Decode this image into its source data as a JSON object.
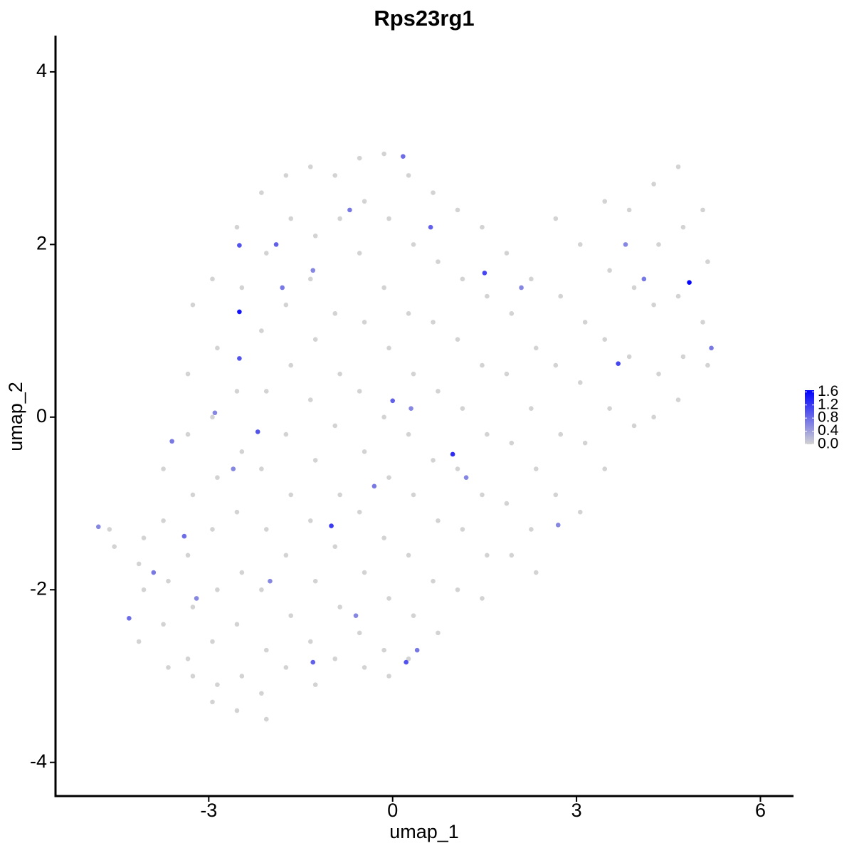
{
  "chart_data": {
    "type": "scatter",
    "title": "Rps23rg1",
    "x_label": "umap_1",
    "y_label": "umap_2",
    "xlim": [
      -5.5,
      6.54
    ],
    "ylim": [
      -4.39,
      4.42
    ],
    "xticks": [
      -3,
      0,
      3,
      6
    ],
    "yticks": [
      -4,
      -2,
      0,
      2,
      4
    ],
    "low_color": "#d3d3d3",
    "high_color": "#0000ff",
    "colorlim": [
      0,
      1.65
    ],
    "color_ticks": [
      {
        "value": 0,
        "label": "0.0"
      },
      {
        "value": 0.4,
        "label": "0.4"
      },
      {
        "value": 0.8,
        "label": "0.8"
      },
      {
        "value": 1.2,
        "label": "1.2"
      },
      {
        "value": 1.6,
        "label": "1.6"
      }
    ],
    "x": [
      -4.62,
      -4.54,
      -4.14,
      -4.06,
      -4.14,
      -4.06,
      -3.74,
      -3.66,
      -3.74,
      -3.66,
      -3.74,
      -3.34,
      -3.26,
      -3.34,
      -3.26,
      -3.34,
      -3.26,
      -3.34,
      -3.26,
      -2.94,
      -2.86,
      -2.94,
      -2.86,
      -2.94,
      -2.86,
      -2.94,
      -2.86,
      -2.94,
      -2.54,
      -2.46,
      -2.54,
      -2.46,
      -2.54,
      -2.46,
      -2.54,
      -2.46,
      -2.54,
      -2.14,
      -2.06,
      -2.14,
      -2.06,
      -2.14,
      -2.06,
      -2.14,
      -2.06,
      -2.14,
      -2.06,
      -1.74,
      -1.66,
      -1.74,
      -1.66,
      -1.74,
      -1.66,
      -1.74,
      -1.66,
      -1.74,
      -1.34,
      -1.26,
      -1.34,
      -1.26,
      -1.34,
      -1.26,
      -1.34,
      -1.26,
      -1.34,
      -1.26,
      -0.94,
      -0.86,
      -0.94,
      -0.86,
      -0.94,
      -0.86,
      -0.94,
      -0.86,
      -0.94,
      -0.54,
      -0.46,
      -0.54,
      -0.46,
      -0.54,
      -0.46,
      -0.54,
      -0.46,
      -0.54,
      -0.46,
      -0.14,
      -0.06,
      -0.14,
      -0.06,
      -0.14,
      -0.06,
      -0.14,
      -0.06,
      -0.14,
      -0.06,
      0.26,
      0.34,
      0.26,
      0.34,
      0.26,
      0.34,
      0.26,
      0.34,
      0.26,
      0.66,
      0.74,
      0.66,
      0.74,
      0.66,
      0.74,
      0.66,
      0.74,
      1.06,
      1.14,
      1.06,
      1.14,
      1.06,
      1.14,
      1.06,
      1.46,
      1.54,
      1.46,
      1.54,
      1.46,
      1.54,
      1.46,
      1.86,
      1.94,
      1.86,
      1.94,
      1.86,
      1.94,
      2.26,
      2.34,
      2.26,
      2.34,
      2.26,
      2.34,
      2.66,
      2.74,
      2.66,
      2.74,
      2.66,
      3.06,
      3.14,
      3.06,
      3.14,
      3.06,
      3.46,
      3.54,
      3.46,
      3.54,
      3.46,
      3.86,
      3.94,
      3.86,
      3.94,
      4.26,
      4.34,
      4.26,
      4.34,
      4.26,
      4.66,
      4.74,
      4.66,
      4.74,
      4.66,
      5.06,
      5.14,
      5.06,
      5.14,
      -2.5,
      -2.5,
      -1.9,
      4.84,
      0.98,
      -1.0,
      1.5,
      3.68,
      -2.5,
      -2.2,
      0.0,
      0.17,
      0.62,
      -4.8,
      -3.6,
      -3.4,
      -4.3,
      -1.3,
      0.22,
      -2.9,
      -1.8,
      -1.3,
      -0.7,
      -2.6,
      -0.3,
      0.3,
      1.2,
      2.1,
      3.8,
      5.2,
      4.1,
      -3.2,
      -2.0,
      -0.6,
      0.4,
      2.7,
      -3.9
    ],
    "values": [
      -1.3,
      -1.5,
      -1.7,
      -2.0,
      -2.6,
      -1.4,
      -1.2,
      -1.9,
      -2.4,
      -2.9,
      -0.6,
      -0.2,
      -0.9,
      -1.6,
      -2.2,
      -2.8,
      -3.0,
      0.5,
      1.3,
      0.0,
      0.8,
      1.6,
      -0.7,
      -1.3,
      -2.0,
      -2.6,
      -3.1,
      -3.3,
      2.2,
      1.5,
      0.3,
      -0.4,
      -1.1,
      -1.8,
      -2.4,
      -3.0,
      -3.4,
      2.6,
      1.9,
      1.0,
      0.3,
      -0.6,
      -1.3,
      -2.0,
      -2.7,
      -3.2,
      -3.5,
      2.8,
      2.3,
      1.3,
      0.6,
      -0.2,
      -0.9,
      -1.6,
      -2.3,
      -2.9,
      2.9,
      2.1,
      1.6,
      0.9,
      0.2,
      -0.5,
      -1.2,
      -1.9,
      -2.6,
      -3.1,
      2.8,
      2.3,
      1.2,
      0.5,
      -0.1,
      -0.9,
      -1.5,
      -2.2,
      -2.8,
      3.0,
      2.5,
      1.9,
      1.1,
      0.3,
      -0.4,
      -1.1,
      -1.8,
      -2.5,
      -2.9,
      3.05,
      2.3,
      1.5,
      0.8,
      0.0,
      -0.7,
      -1.4,
      -2.1,
      -2.7,
      -3.0,
      2.8,
      2.0,
      1.2,
      0.5,
      -0.2,
      -0.9,
      -1.6,
      -2.3,
      -2.8,
      2.6,
      1.8,
      1.1,
      0.3,
      -0.5,
      -1.2,
      -1.9,
      -2.5,
      2.4,
      1.6,
      0.9,
      0.1,
      -0.6,
      -1.3,
      -2.0,
      2.2,
      1.4,
      0.6,
      -0.2,
      -0.9,
      -1.6,
      -2.1,
      1.9,
      1.2,
      0.5,
      -0.3,
      -1.0,
      -1.6,
      1.6,
      0.8,
      0.1,
      -0.6,
      -1.3,
      -1.8,
      2.3,
      1.4,
      0.6,
      -0.2,
      -0.9,
      2.0,
      1.1,
      0.4,
      -0.3,
      -1.1,
      2.5,
      1.7,
      0.9,
      0.1,
      -0.6,
      2.4,
      1.5,
      0.7,
      -0.1,
      2.7,
      2.0,
      1.3,
      0.5,
      0.0,
      2.9,
      2.2,
      1.4,
      0.7,
      0.2,
      2.4,
      1.8,
      1.1,
      0.6,
      1.22,
      1.99,
      2.0,
      1.56,
      -0.43,
      -1.26,
      1.67,
      0.62,
      0.68,
      -0.17,
      0.19,
      3.02,
      2.2,
      -1.27,
      -0.28,
      -1.38,
      -2.33,
      -2.84,
      -2.84,
      0.05,
      1.5,
      1.7,
      2.4,
      -0.6,
      -0.8,
      0.1,
      -0.7,
      1.5,
      2.0,
      0.8,
      1.6,
      -2.1,
      -1.9,
      -2.3,
      -2.7,
      -1.25,
      -1.8
    ],
    "expression": [
      0,
      0,
      0,
      0,
      0,
      0,
      0,
      0,
      0,
      0,
      0,
      0,
      0,
      0,
      0,
      0,
      0,
      0,
      0,
      0,
      0,
      0,
      0,
      0,
      0,
      0,
      0,
      0,
      0,
      0,
      0,
      0,
      0,
      0,
      0,
      0,
      0,
      0,
      0,
      0,
      0,
      0,
      0,
      0,
      0,
      0,
      0,
      0,
      0,
      0,
      0,
      0,
      0,
      0,
      0,
      0,
      0,
      0,
      0,
      0,
      0,
      0,
      0,
      0,
      0,
      0,
      0,
      0,
      0,
      0,
      0,
      0,
      0,
      0,
      0,
      0,
      0,
      0,
      0,
      0,
      0,
      0,
      0,
      0,
      0,
      0,
      0,
      0,
      0,
      0,
      0,
      0,
      0,
      0,
      0,
      0,
      0,
      0,
      0,
      0,
      0,
      0,
      0,
      0,
      0,
      0,
      0,
      0,
      0,
      0,
      0,
      0,
      0,
      0,
      0,
      0,
      0,
      0,
      0,
      0,
      0,
      0,
      0,
      0,
      0,
      0,
      0,
      0,
      0,
      0,
      0,
      0,
      0,
      0,
      0,
      0,
      0,
      0,
      0,
      0,
      0,
      0,
      0,
      0,
      0,
      0,
      0,
      0,
      0,
      0,
      0,
      0,
      0,
      0,
      0,
      0,
      0,
      0,
      0,
      0,
      0,
      0,
      0,
      0,
      0,
      0,
      0,
      0,
      0,
      0,
      0,
      1.5,
      1.0,
      0.9,
      1.6,
      1.3,
      1.2,
      1.1,
      1.1,
      1.0,
      1.0,
      0.9,
      0.8,
      0.9,
      0.6,
      0.7,
      0.8,
      0.8,
      0.9,
      1.0,
      0.6,
      0.7,
      0.6,
      0.7,
      0.6,
      0.7,
      0.6,
      0.6,
      0.6,
      0.6,
      0.7,
      0.7,
      0.6,
      0.6,
      0.6,
      0.7,
      0.6,
      0.7
    ]
  }
}
